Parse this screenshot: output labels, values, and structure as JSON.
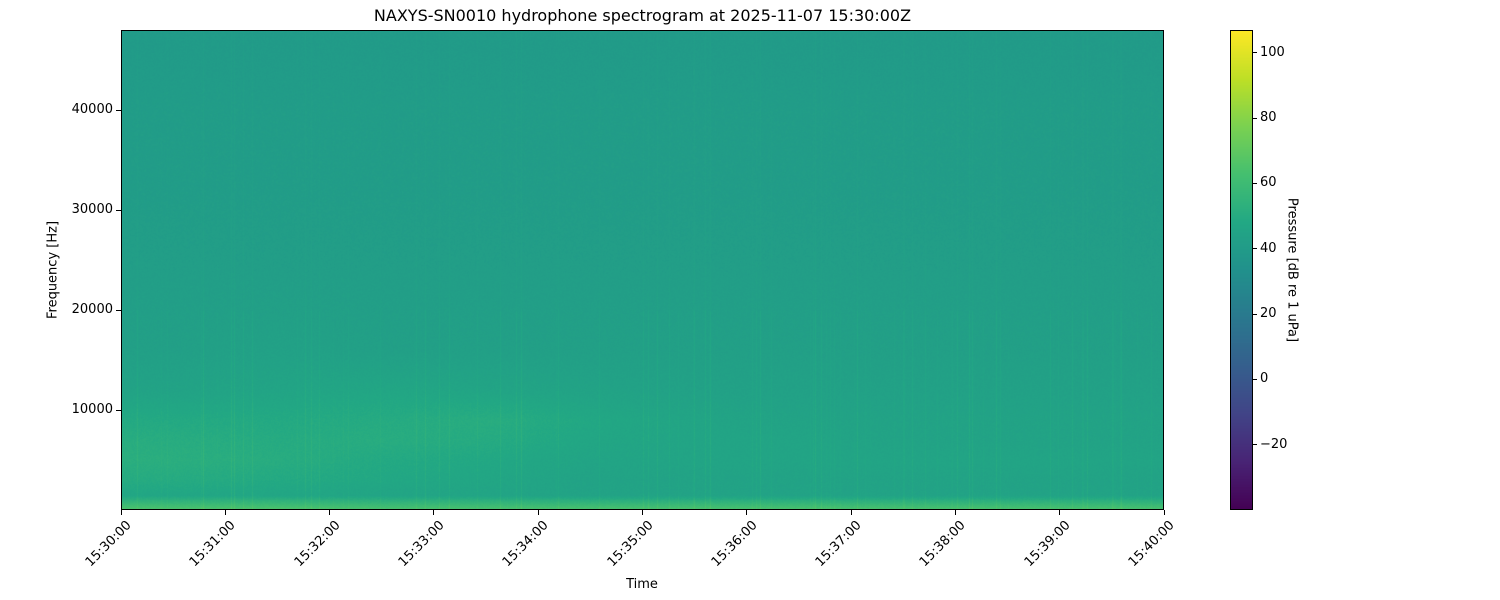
{
  "chart_data": {
    "type": "heatmap",
    "title": "NAXYS-SN0010 hydrophone spectrogram at 2025-11-07 15:30:00Z",
    "xlabel": "Time",
    "ylabel": "Frequency [Hz]",
    "colorbar_label": "Pressure [dB re 1 uPa]",
    "colormap": "viridis",
    "x_ticks": [
      "15:30:00",
      "15:31:00",
      "15:32:00",
      "15:33:00",
      "15:34:00",
      "15:35:00",
      "15:36:00",
      "15:37:00",
      "15:38:00",
      "15:39:00",
      "15:40:00"
    ],
    "xlim_minutes": [
      0,
      10
    ],
    "ylim": [
      0,
      48000
    ],
    "y_ticks": [
      10000,
      20000,
      30000,
      40000
    ],
    "clim": [
      -40,
      107
    ],
    "colorbar_ticks": [
      -20,
      0,
      20,
      40,
      60,
      80,
      100
    ],
    "grid": false,
    "freq_bands_hz": [
      250,
      1500,
      3000,
      5000,
      7000,
      9000,
      12000,
      16000,
      24000,
      32000,
      40000,
      46000
    ],
    "time_bins_minutes": [
      0.5,
      1.5,
      2.5,
      3.5,
      4.5,
      5.5,
      6.5,
      7.5,
      8.5,
      9.5
    ],
    "levels_db": [
      [
        64,
        64,
        63,
        63,
        63,
        63,
        63,
        63,
        63,
        63
      ],
      [
        47,
        47,
        46,
        46,
        45,
        45,
        45,
        45,
        45,
        45
      ],
      [
        50,
        49,
        48,
        47,
        45,
        45,
        45,
        45,
        45,
        45
      ],
      [
        52,
        51,
        49,
        48,
        46,
        46,
        46,
        46,
        46,
        46
      ],
      [
        51,
        50,
        51,
        50,
        47,
        46,
        46,
        45,
        45,
        45
      ],
      [
        49,
        49,
        50,
        51,
        48,
        46,
        45,
        45,
        45,
        45
      ],
      [
        45,
        46,
        47,
        46,
        45,
        44,
        44,
        44,
        44,
        44
      ],
      [
        43,
        44,
        43,
        43,
        43,
        43,
        43,
        43,
        43,
        43
      ],
      [
        42,
        42,
        42,
        42,
        42,
        42,
        42,
        42,
        42,
        42
      ],
      [
        41,
        41,
        41,
        41,
        41,
        41,
        41,
        41,
        41,
        41
      ],
      [
        41,
        41,
        41,
        41,
        41,
        41,
        41,
        41,
        41,
        41
      ],
      [
        40,
        40,
        40,
        40,
        40,
        40,
        40,
        40,
        40,
        40
      ]
    ]
  }
}
